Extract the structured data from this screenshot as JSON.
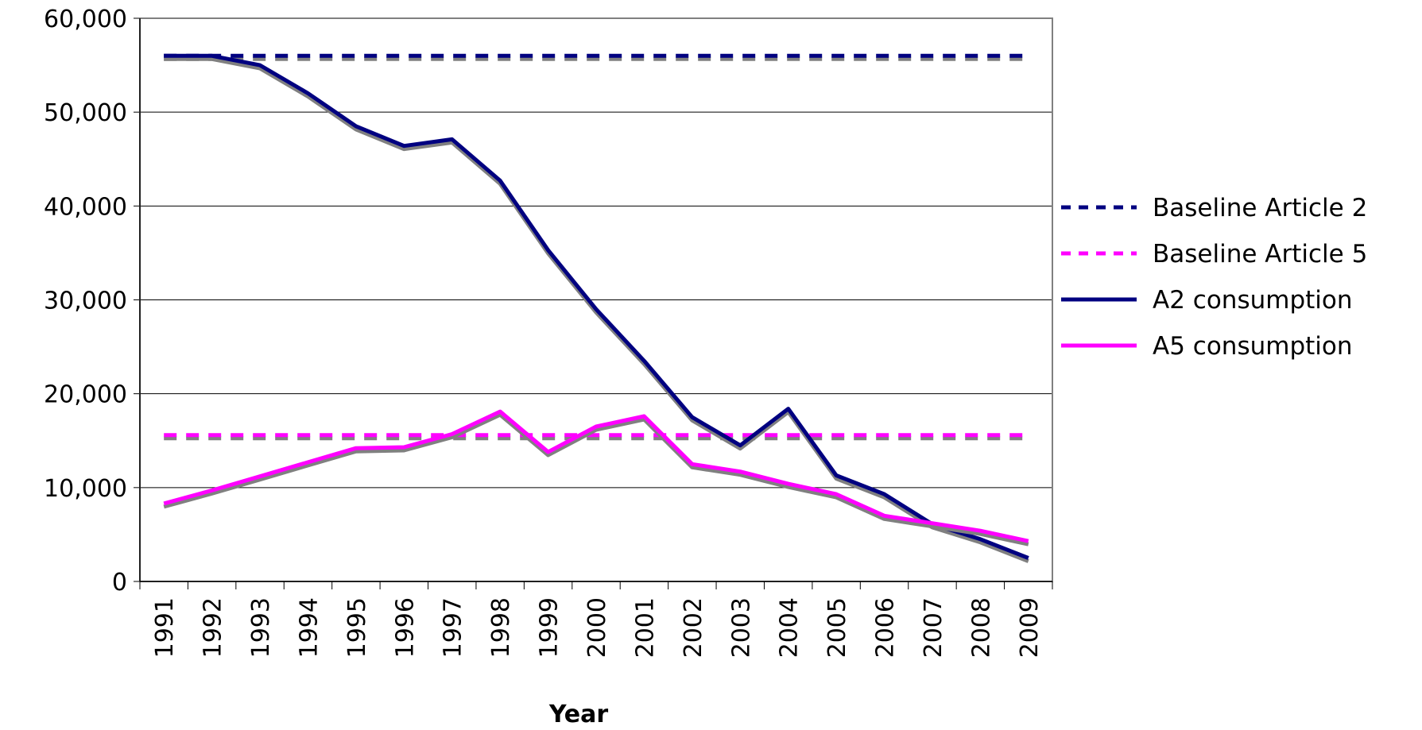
{
  "chart_data": {
    "type": "line",
    "title": "",
    "xlabel": "Year",
    "ylabel": "",
    "ylim": [
      0,
      60000
    ],
    "yticks": [
      0,
      10000,
      20000,
      30000,
      40000,
      50000,
      60000
    ],
    "ytick_labels": [
      "0",
      "10,000",
      "20,000",
      "30,000",
      "40,000",
      "50,000",
      "60,000"
    ],
    "categories": [
      "1991",
      "1992",
      "1993",
      "1994",
      "1995",
      "1996",
      "1997",
      "1998",
      "1999",
      "2000",
      "2001",
      "2002",
      "2003",
      "2004",
      "2005",
      "2006",
      "2007",
      "2008",
      "2009"
    ],
    "grid": "horizontal",
    "legend_position": "right",
    "series": [
      {
        "name": "Baseline Article 2",
        "color": "#000080",
        "dash": true,
        "values": [
          56000,
          56000,
          56000,
          56000,
          56000,
          56000,
          56000,
          56000,
          56000,
          56000,
          56000,
          56000,
          56000,
          56000,
          56000,
          56000,
          56000,
          56000,
          56000
        ]
      },
      {
        "name": "Baseline Article 5",
        "color": "#FF00FF",
        "dash": true,
        "values": [
          15600,
          15600,
          15600,
          15600,
          15600,
          15600,
          15600,
          15600,
          15600,
          15600,
          15600,
          15600,
          15600,
          15600,
          15600,
          15600,
          15600,
          15600,
          15600
        ]
      },
      {
        "name": "A2 consumption",
        "color": "#000080",
        "dash": false,
        "values": [
          56000,
          56000,
          55000,
          52000,
          48500,
          46400,
          47100,
          42700,
          35300,
          29000,
          23500,
          17500,
          14500,
          18400,
          11300,
          9300,
          6100,
          4500,
          2500
        ]
      },
      {
        "name": "A5 consumption",
        "color": "#FF00FF",
        "dash": false,
        "values": [
          8300,
          9700,
          11200,
          12700,
          14200,
          14300,
          15700,
          18100,
          13800,
          16500,
          17600,
          12500,
          11700,
          10400,
          9300,
          7000,
          6200,
          5400,
          4300
        ]
      }
    ]
  }
}
